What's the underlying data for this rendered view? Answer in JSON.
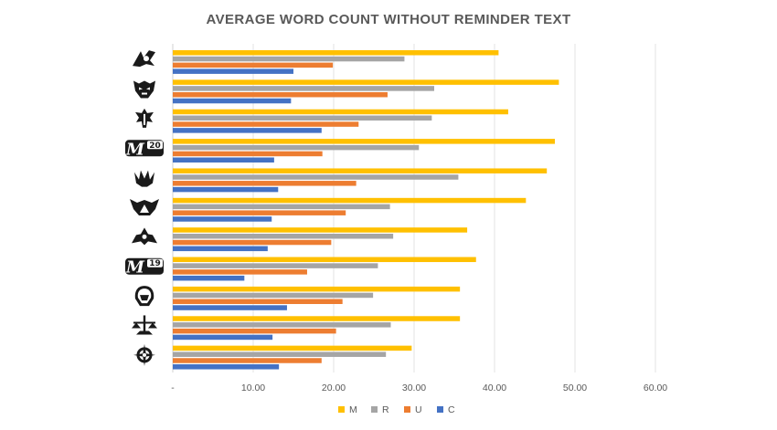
{
  "chart_data": {
    "type": "bar",
    "orientation": "horizontal",
    "title": "AVERAGE WORD COUNT WITHOUT REMINDER TEXT",
    "xlabel": "",
    "ylabel": "",
    "xlim": [
      0,
      60
    ],
    "x_ticks": [
      0,
      10,
      20,
      30,
      40,
      50,
      60
    ],
    "x_tick_labels": [
      "-",
      "10.00",
      "20.00",
      "30.00",
      "40.00",
      "50.00",
      "60.00"
    ],
    "grid": true,
    "legend_position": "bottom",
    "categories": [
      "set-icon-1",
      "set-icon-2",
      "set-icon-3",
      "M20",
      "set-icon-5",
      "set-icon-6",
      "set-icon-7",
      "M19",
      "set-icon-9",
      "set-icon-10",
      "set-icon-11"
    ],
    "category_icons": [
      "chevron-flame-icon",
      "demon-mask-icon",
      "guild-crest-icon",
      "m20-core-set-icon",
      "crown-flame-icon",
      "horned-helm-icon",
      "castle-gate-icon",
      "m19-core-set-icon",
      "helmet-visor-icon",
      "balance-scale-icon",
      "compass-wheel-icon"
    ],
    "series": [
      {
        "name": "M",
        "color": "#FFC000",
        "values": [
          40.5,
          48.0,
          41.7,
          47.5,
          46.5,
          43.9,
          36.6,
          37.7,
          35.7,
          35.7,
          29.7
        ]
      },
      {
        "name": "R",
        "color": "#A5A5A5",
        "values": [
          28.8,
          32.5,
          32.2,
          30.6,
          35.5,
          27.0,
          27.4,
          25.5,
          24.9,
          27.1,
          26.5
        ]
      },
      {
        "name": "U",
        "color": "#ED7D31",
        "values": [
          19.9,
          26.7,
          23.1,
          18.6,
          22.8,
          21.5,
          19.7,
          16.7,
          21.1,
          20.3,
          18.5
        ]
      },
      {
        "name": "C",
        "color": "#4472C4",
        "values": [
          15.0,
          14.7,
          18.5,
          12.6,
          13.1,
          12.3,
          11.8,
          8.9,
          14.2,
          12.4,
          13.2
        ]
      }
    ]
  }
}
